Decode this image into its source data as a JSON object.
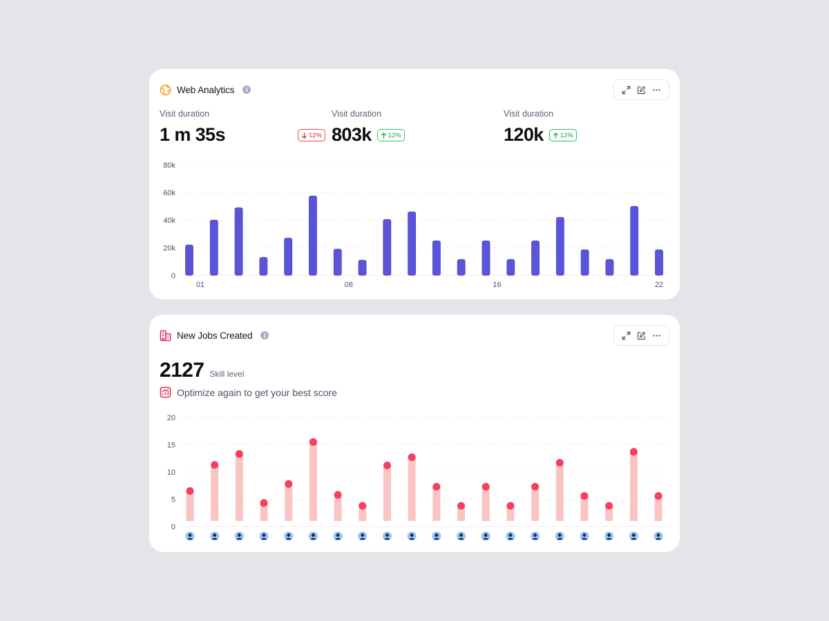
{
  "web_analytics": {
    "title": "Web Analytics",
    "icon": "globe-icon",
    "metrics": [
      {
        "label": "Visit duration",
        "value": "1 m 35s",
        "badge": {
          "direction": "down",
          "text": "12%"
        }
      },
      {
        "label": "Visit duration",
        "value": "803k",
        "badge": {
          "direction": "up",
          "text": "12%"
        }
      },
      {
        "label": "Visit duration",
        "value": "120k",
        "badge": {
          "direction": "up",
          "text": "12%"
        }
      }
    ],
    "toolbar": [
      "expand-icon",
      "edit-icon",
      "more-icon"
    ],
    "chart_data": {
      "type": "bar",
      "y_ticks": [
        "0",
        "20k",
        "40k",
        "60k",
        "80k"
      ],
      "ylim": [
        0,
        80000
      ],
      "x_tick_labels": [
        {
          "index": 0,
          "label": "01"
        },
        {
          "index": 6,
          "label": "08"
        },
        {
          "index": 12,
          "label": "16"
        },
        {
          "index": 19,
          "label": "22"
        }
      ],
      "values": [
        22000,
        40000,
        49000,
        13000,
        27000,
        57500,
        19000,
        11000,
        40500,
        46000,
        25000,
        11500,
        25000,
        11500,
        25000,
        42000,
        18500,
        11500,
        50000,
        18500
      ],
      "color": "#5a55d8",
      "grid": true
    }
  },
  "new_jobs": {
    "title": "New Jobs Created",
    "icon": "building-icon",
    "total": "2127",
    "total_label": "Skill level",
    "hint": "Optimize again to get your best score",
    "toolbar": [
      "expand-icon",
      "edit-icon",
      "more-icon"
    ],
    "chart_data": {
      "type": "bar",
      "y_ticks": [
        "0",
        "5",
        "10",
        "15",
        "20"
      ],
      "ylim": [
        0,
        20
      ],
      "values": [
        6.5,
        11.3,
        13.3,
        4.3,
        7.8,
        15.5,
        5.8,
        3.8,
        11.2,
        12.7,
        7.3,
        3.8,
        7.3,
        3.8,
        7.3,
        11.7,
        5.6,
        3.8,
        13.7,
        5.6
      ],
      "bar_color": "#f9c4c4",
      "dot_color": "#f43f5e",
      "x_markers": "avatar",
      "grid": true
    }
  }
}
